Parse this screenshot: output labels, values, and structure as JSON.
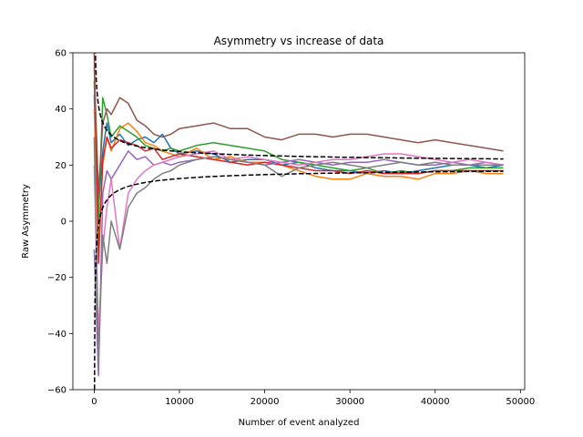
{
  "chart_data": {
    "type": "line",
    "title": "Asymmetry vs increase of data",
    "xlabel": "Number of event analyzed",
    "ylabel": "Raw Asymmetry",
    "xlim": [
      -2500,
      50500
    ],
    "ylim": [
      -60,
      60
    ],
    "xticks": [
      0,
      10000,
      20000,
      30000,
      40000,
      50000
    ],
    "yticks": [
      -60,
      -40,
      -20,
      0,
      20,
      40,
      60
    ],
    "grid": false,
    "legend": "none",
    "series": [
      {
        "color": "#1f77b4",
        "x": [
          0,
          500,
          1000,
          1500,
          2000,
          3000,
          4000,
          5000,
          6000,
          7000,
          8000,
          9000,
          10000,
          12000,
          14000,
          16000,
          18000,
          20000,
          22000,
          24000,
          26000,
          28000,
          30000,
          32000,
          34000,
          36000,
          38000,
          40000,
          42000,
          44000,
          46000,
          48000
        ],
        "y": [
          45,
          5,
          25,
          35,
          28,
          31,
          27,
          29,
          30,
          28,
          31,
          26,
          24,
          25,
          24,
          21,
          22,
          22,
          20,
          21,
          19,
          18,
          18,
          17,
          18,
          17,
          18,
          19,
          20,
          20,
          19,
          20
        ]
      },
      {
        "color": "#ff7f0e",
        "x": [
          0,
          500,
          1000,
          1500,
          2000,
          3000,
          4000,
          5000,
          6000,
          7000,
          8000,
          9000,
          10000,
          12000,
          14000,
          16000,
          18000,
          20000,
          22000,
          24000,
          26000,
          28000,
          30000,
          32000,
          34000,
          36000,
          38000,
          40000,
          42000,
          44000,
          46000,
          48000
        ],
        "y": [
          40,
          -10,
          20,
          30,
          25,
          33,
          35,
          32,
          28,
          27,
          25,
          24,
          23,
          26,
          22,
          23,
          21,
          21,
          20,
          18,
          16,
          15,
          15,
          17,
          16,
          16,
          15,
          17,
          17,
          18,
          17,
          17
        ]
      },
      {
        "color": "#2ca02c",
        "x": [
          0,
          500,
          1000,
          1500,
          2000,
          3000,
          4000,
          5000,
          6000,
          7000,
          8000,
          9000,
          10000,
          12000,
          14000,
          16000,
          18000,
          20000,
          22000,
          24000,
          26000,
          28000,
          30000,
          32000,
          34000,
          36000,
          38000,
          40000,
          42000,
          44000,
          46000,
          48000
        ],
        "y": [
          50,
          0,
          44,
          38,
          30,
          34,
          32,
          30,
          27,
          26,
          25,
          26,
          25,
          27,
          28,
          27,
          26,
          25,
          22,
          21,
          20,
          19,
          18,
          19,
          17,
          18,
          17,
          18,
          18,
          19,
          19,
          19
        ]
      },
      {
        "color": "#d62728",
        "x": [
          0,
          500,
          1000,
          1500,
          2000,
          3000,
          4000,
          5000,
          6000,
          7000,
          8000,
          9000,
          10000,
          12000,
          14000,
          16000,
          18000,
          20000,
          22000,
          24000,
          26000,
          28000,
          30000,
          32000,
          34000,
          36000,
          38000,
          40000,
          42000,
          44000,
          46000,
          48000
        ],
        "y": [
          60,
          -15,
          22,
          30,
          26,
          29,
          28,
          27,
          25,
          26,
          22,
          23,
          24,
          23,
          22,
          21,
          20,
          21,
          20,
          19,
          18,
          18,
          17,
          18,
          17,
          17,
          17,
          18,
          18,
          18,
          18,
          18
        ]
      },
      {
        "color": "#9467bd",
        "x": [
          0,
          500,
          1000,
          1500,
          2000,
          3000,
          4000,
          5000,
          6000,
          7000,
          8000,
          9000,
          10000,
          12000,
          14000,
          16000,
          18000,
          20000,
          22000,
          24000,
          26000,
          28000,
          30000,
          32000,
          34000,
          36000,
          38000,
          40000,
          42000,
          44000,
          46000,
          48000
        ],
        "y": [
          -10,
          -55,
          10,
          18,
          15,
          20,
          25,
          22,
          23,
          20,
          21,
          20,
          21,
          22,
          23,
          22,
          21,
          20,
          21,
          22,
          21,
          20,
          21,
          21,
          22,
          21,
          20,
          20,
          21,
          20,
          21,
          20
        ]
      },
      {
        "color": "#8c564b",
        "x": [
          0,
          500,
          1000,
          1500,
          2000,
          3000,
          4000,
          5000,
          6000,
          7000,
          8000,
          9000,
          10000,
          12000,
          14000,
          16000,
          18000,
          20000,
          22000,
          24000,
          26000,
          28000,
          30000,
          32000,
          34000,
          36000,
          38000,
          40000,
          42000,
          44000,
          46000,
          48000
        ],
        "y": [
          55,
          10,
          35,
          40,
          38,
          44,
          42,
          36,
          34,
          31,
          30,
          31,
          33,
          34,
          35,
          33,
          33,
          30,
          29,
          31,
          31,
          30,
          31,
          31,
          30,
          29,
          28,
          29,
          28,
          27,
          26,
          25
        ]
      },
      {
        "color": "#e377c2",
        "x": [
          0,
          500,
          1000,
          1500,
          2000,
          3000,
          4000,
          5000,
          6000,
          7000,
          8000,
          9000,
          10000,
          12000,
          14000,
          16000,
          18000,
          20000,
          22000,
          24000,
          26000,
          28000,
          30000,
          32000,
          34000,
          36000,
          38000,
          40000,
          42000,
          44000,
          46000,
          48000
        ],
        "y": [
          20,
          -40,
          -10,
          5,
          15,
          -10,
          10,
          15,
          18,
          20,
          21,
          22,
          23,
          24,
          25,
          22,
          23,
          22,
          21,
          20,
          21,
          22,
          22,
          23,
          24,
          24,
          23,
          22,
          21,
          22,
          21,
          20
        ]
      },
      {
        "color": "#7f7f7f",
        "x": [
          0,
          500,
          1000,
          1500,
          2000,
          3000,
          4000,
          5000,
          6000,
          7000,
          8000,
          9000,
          10000,
          12000,
          14000,
          16000,
          18000,
          20000,
          22000,
          24000,
          26000,
          28000,
          30000,
          32000,
          34000,
          36000,
          38000,
          40000,
          42000,
          44000,
          46000,
          48000
        ],
        "y": [
          30,
          -50,
          -5,
          -15,
          0,
          -10,
          5,
          10,
          12,
          15,
          17,
          18,
          20,
          22,
          23,
          22,
          21,
          20,
          16,
          19,
          20,
          21,
          20,
          19,
          20,
          21,
          20,
          21,
          20,
          20,
          20,
          20
        ]
      }
    ],
    "envelope": {
      "style": "dashed",
      "color": "#000000",
      "center": 20,
      "scale": 480
    }
  }
}
